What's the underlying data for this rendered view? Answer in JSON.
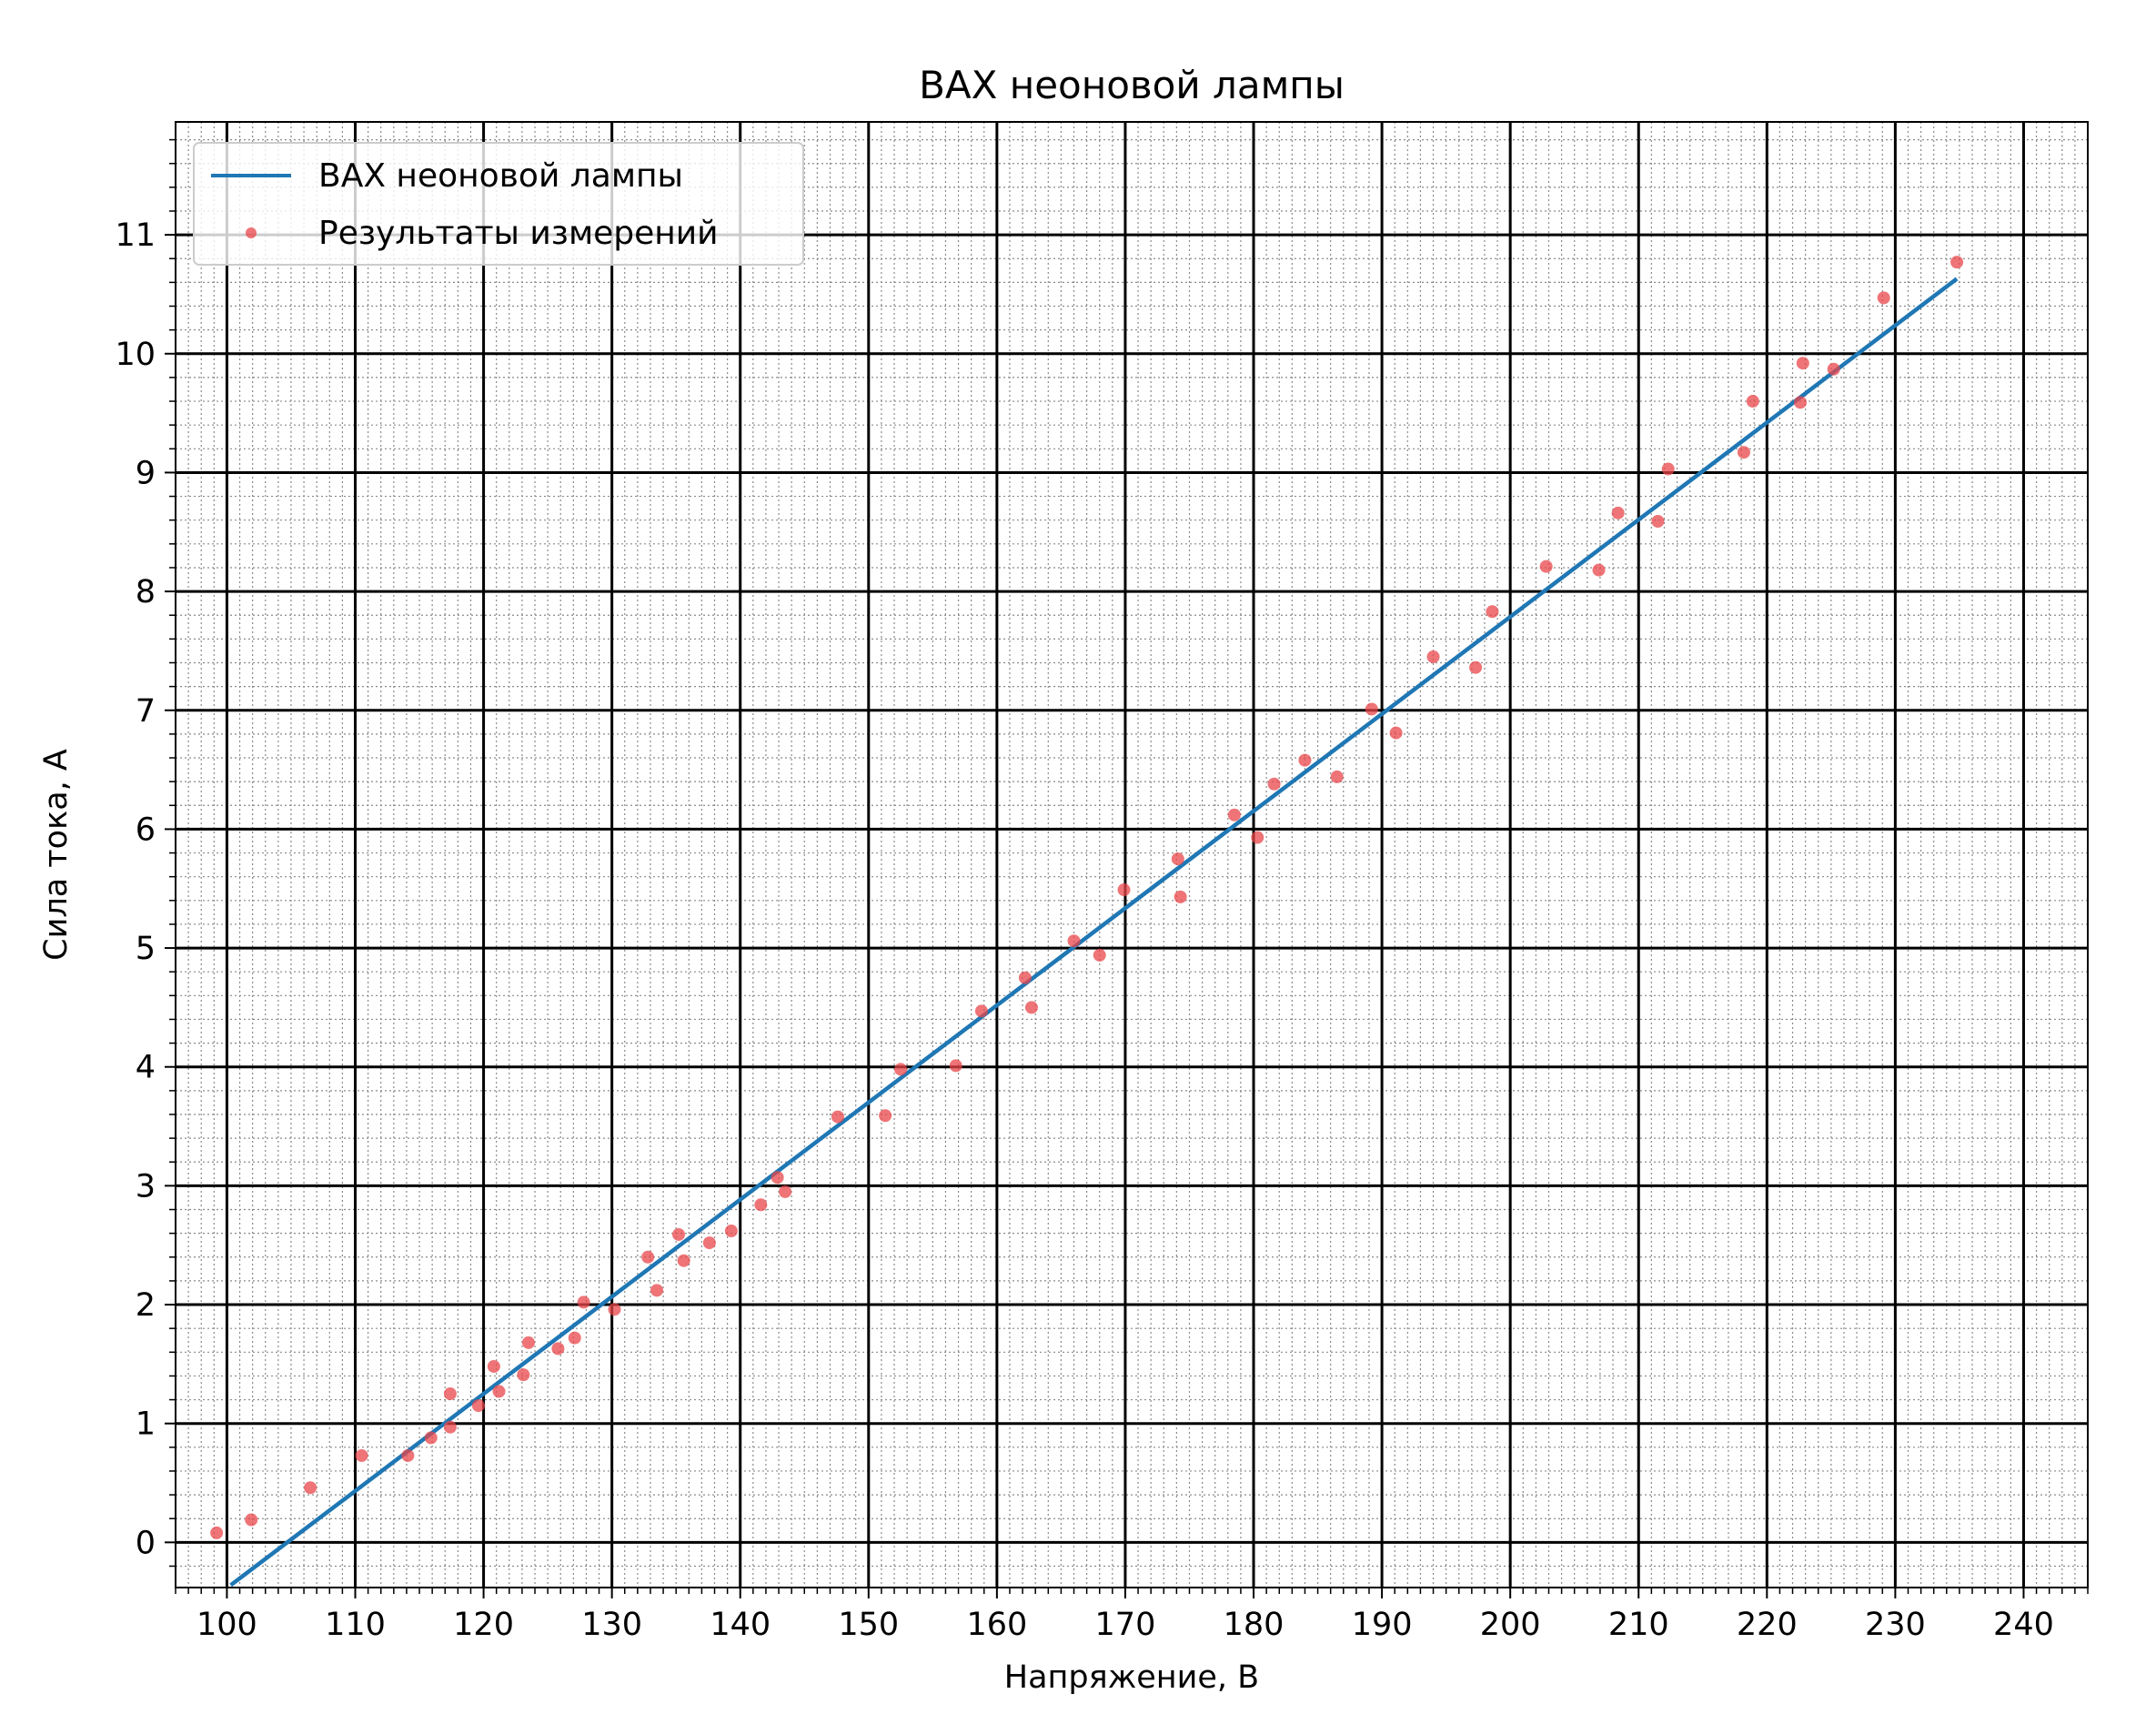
{
  "chart_data": {
    "type": "scatter",
    "title": "ВАХ неоновой лампы",
    "xlabel": "Напряжение, В",
    "ylabel": "Сила тока, А",
    "xlabel_color": "#0000ff",
    "ylabel_color": "#ff0000",
    "xlim": [
      96,
      245
    ],
    "ylim": [
      -0.38,
      11.95
    ],
    "x_ticks": [
      "100",
      "110",
      "120",
      "130",
      "140",
      "150",
      "160",
      "170",
      "180",
      "190",
      "200",
      "210",
      "220",
      "230",
      "240"
    ],
    "y_ticks": [
      "0",
      "1",
      "2",
      "3",
      "4",
      "5",
      "6",
      "7",
      "8",
      "9",
      "10",
      "11"
    ],
    "grid": {
      "major": true,
      "minor": true,
      "minor_style": "dotted"
    },
    "legend": {
      "position": "top-left",
      "entries": [
        {
          "label": "ВАХ неоновой лампы",
          "kind": "line",
          "color": "#1f77b4"
        },
        {
          "label": "Результаты измерений",
          "kind": "marker",
          "color": "#e8454a"
        }
      ]
    },
    "series": [
      {
        "name": "ВАХ неоновой лампы",
        "kind": "line",
        "color": "#1f77b4",
        "x": [
          100.3,
          234.8
        ],
        "y": [
          -0.36,
          10.63
        ]
      },
      {
        "name": "Результаты измерений",
        "kind": "scatter",
        "color": "#e8454a",
        "x": [
          99.2,
          101.9,
          106.5,
          110.5,
          114.1,
          115.9,
          117.4,
          117.4,
          119.6,
          120.8,
          121.2,
          123.1,
          123.5,
          125.8,
          127.1,
          127.8,
          130.2,
          132.8,
          133.5,
          135.2,
          135.6,
          137.6,
          139.3,
          141.6,
          142.9,
          143.5,
          147.6,
          151.3,
          152.5,
          156.8,
          158.8,
          162.2,
          162.7,
          166.0,
          168.0,
          169.9,
          174.1,
          174.3,
          178.5,
          180.3,
          181.6,
          184.0,
          186.5,
          189.2,
          191.1,
          194.0,
          197.3,
          198.6,
          202.8,
          206.9,
          208.4,
          211.5,
          212.3,
          218.2,
          218.9,
          222.6,
          222.8,
          225.2,
          229.1,
          234.8
        ],
        "y": [
          0.08,
          0.19,
          0.46,
          0.73,
          0.73,
          0.88,
          0.97,
          1.25,
          1.15,
          1.48,
          1.27,
          1.41,
          1.68,
          1.63,
          1.72,
          2.02,
          1.96,
          2.4,
          2.12,
          2.59,
          2.37,
          2.52,
          2.62,
          2.84,
          3.07,
          2.95,
          3.58,
          3.59,
          3.98,
          4.01,
          4.47,
          4.75,
          4.5,
          5.06,
          4.94,
          5.49,
          5.75,
          5.43,
          6.12,
          5.93,
          6.38,
          6.58,
          6.44,
          7.01,
          6.81,
          7.45,
          7.36,
          7.83,
          8.21,
          8.18,
          8.66,
          8.59,
          9.03,
          9.17,
          9.6,
          9.59,
          9.92,
          9.87,
          10.47,
          10.77
        ]
      }
    ]
  }
}
